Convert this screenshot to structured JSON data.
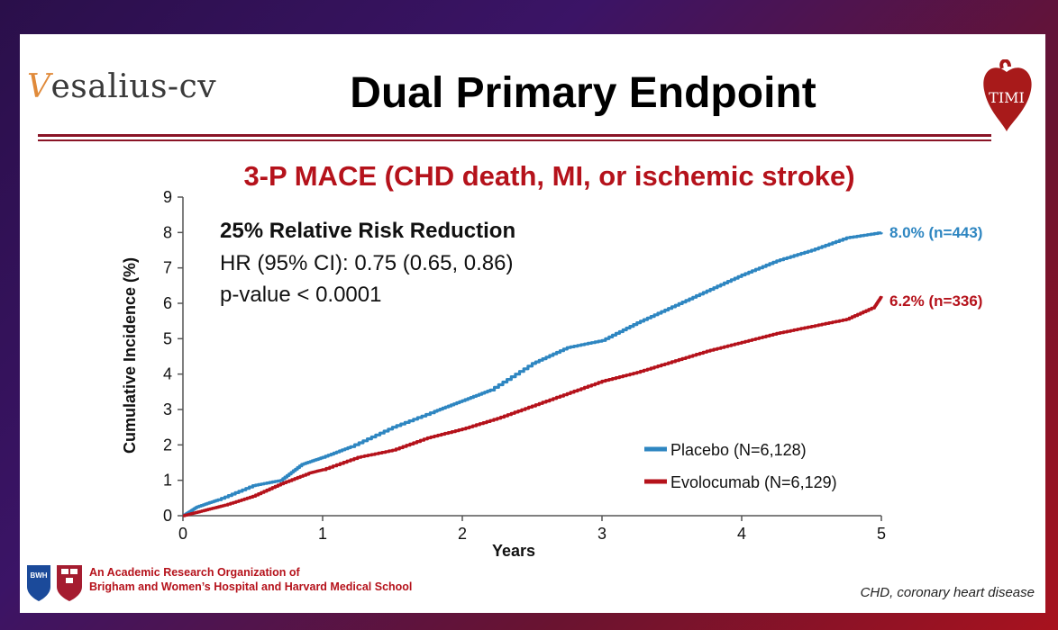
{
  "slide": {
    "logo_text": "Vesalius-cv",
    "title": "Dual Primary Endpoint",
    "timi_logo": "TIMI",
    "subtitle": "3-P MACE (CHD death, MI, or ischemic stroke)",
    "org_line1": "An Academic Research Organization of",
    "org_line2": "Brigham and Women’s Hospital and Harvard Medical School",
    "bwh_logo": "BWH",
    "footnote": "CHD, coronary heart disease"
  },
  "colors": {
    "placebo": "#2e86c1",
    "evolocumab": "#b5121b",
    "accent": "#8a1426"
  },
  "chart_data": {
    "type": "line",
    "xlabel": "Years",
    "ylabel": "Cumulative Incidence (%)",
    "xlim": [
      0,
      5
    ],
    "ylim": [
      0,
      9
    ],
    "xticks": [
      0,
      1,
      2,
      3,
      4,
      5
    ],
    "yticks": [
      0,
      1,
      2,
      3,
      4,
      5,
      6,
      7,
      8,
      9
    ],
    "annotation": {
      "line1": "25% Relative Risk Reduction",
      "line2": "HR (95% CI): 0.75 (0.65, 0.86)",
      "line3": "p-value < 0.0001"
    },
    "series": [
      {
        "name": "Placebo (N=6,128)",
        "end_label": "8.0% (n=443)",
        "x": [
          0,
          0.1,
          0.25,
          0.5,
          0.7,
          0.85,
          1.0,
          1.2,
          1.5,
          1.8,
          2.0,
          2.2,
          2.5,
          2.75,
          3.0,
          3.25,
          3.5,
          3.75,
          4.0,
          4.25,
          4.5,
          4.75,
          5.0
        ],
        "y": [
          0,
          0.25,
          0.45,
          0.85,
          1.0,
          1.45,
          1.65,
          1.95,
          2.5,
          2.95,
          3.25,
          3.55,
          4.3,
          4.75,
          4.95,
          5.45,
          5.9,
          6.35,
          6.8,
          7.2,
          7.5,
          7.85,
          8.0
        ]
      },
      {
        "name": "Evolocumab  (N=6,129)",
        "end_label": "6.2% (n=336)",
        "x": [
          0,
          0.15,
          0.3,
          0.5,
          0.7,
          0.9,
          1.0,
          1.25,
          1.5,
          1.75,
          2.0,
          2.25,
          2.5,
          2.75,
          3.0,
          3.25,
          3.5,
          3.75,
          4.0,
          4.25,
          4.5,
          4.75,
          4.95,
          5.0
        ],
        "y": [
          0,
          0.15,
          0.3,
          0.55,
          0.9,
          1.2,
          1.3,
          1.65,
          1.85,
          2.2,
          2.45,
          2.75,
          3.1,
          3.45,
          3.8,
          4.05,
          4.35,
          4.65,
          4.9,
          5.15,
          5.35,
          5.55,
          5.9,
          6.2
        ]
      }
    ],
    "legend_position": "bottom-right"
  }
}
